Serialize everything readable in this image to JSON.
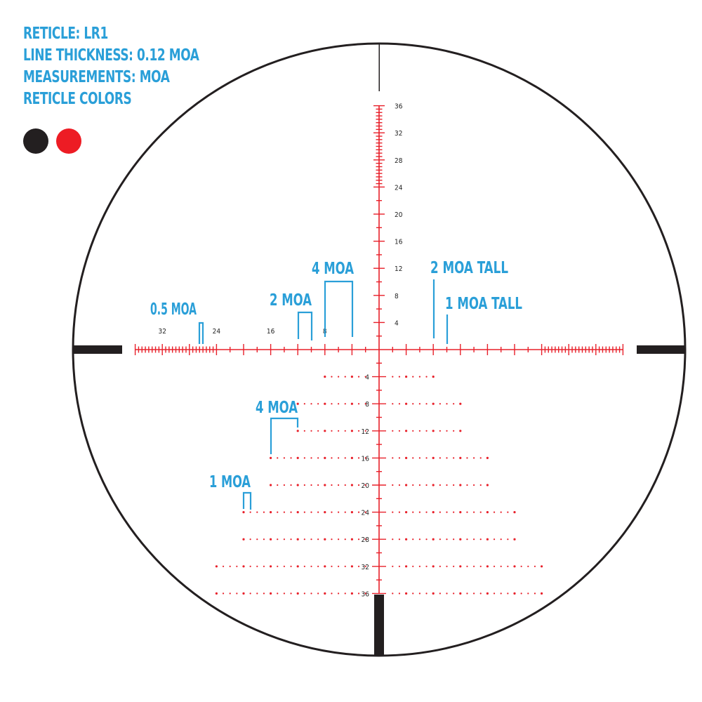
{
  "info": {
    "reticle": "RETICLE: LR1",
    "line_thickness": "LINE THICKNESS: 0.12 MOA",
    "measurements": "MEASUREMENTS: MOA",
    "colors_label": "RETICLE COLORS"
  },
  "reticle_colors": [
    "#231f20",
    "#ed1c24"
  ],
  "colors": {
    "annotation": "#2a9fd8",
    "reticle": "#e8202a",
    "post": "#231f20"
  },
  "horizontal_labels": [
    "32",
    "24",
    "16",
    "8"
  ],
  "vertical_up_labels": [
    "4",
    "8",
    "12",
    "16",
    "20",
    "24",
    "28",
    "32",
    "36"
  ],
  "vertical_down_labels": [
    "4",
    "8",
    "12",
    "16",
    "20",
    "24",
    "28",
    "32",
    "36"
  ],
  "annotations": {
    "half_moa": "0.5 MOA",
    "two_moa": "2 MOA",
    "four_moa_top": "4 MOA",
    "two_moa_tall": "2 MOA TALL",
    "one_moa_tall": "1 MOA TALL",
    "four_moa_bottom": "4 MOA",
    "one_moa": "1 MOA"
  },
  "dot_rows_moa": [
    {
      "row": 4,
      "extent": 8
    },
    {
      "row": 8,
      "extent": 12
    },
    {
      "row": 12,
      "extent": 12
    },
    {
      "row": 16,
      "extent": 16
    },
    {
      "row": 20,
      "extent": 16
    },
    {
      "row": 24,
      "extent": 20
    },
    {
      "row": 28,
      "extent": 20
    },
    {
      "row": 32,
      "extent": 24
    },
    {
      "row": 36,
      "extent": 24
    }
  ]
}
